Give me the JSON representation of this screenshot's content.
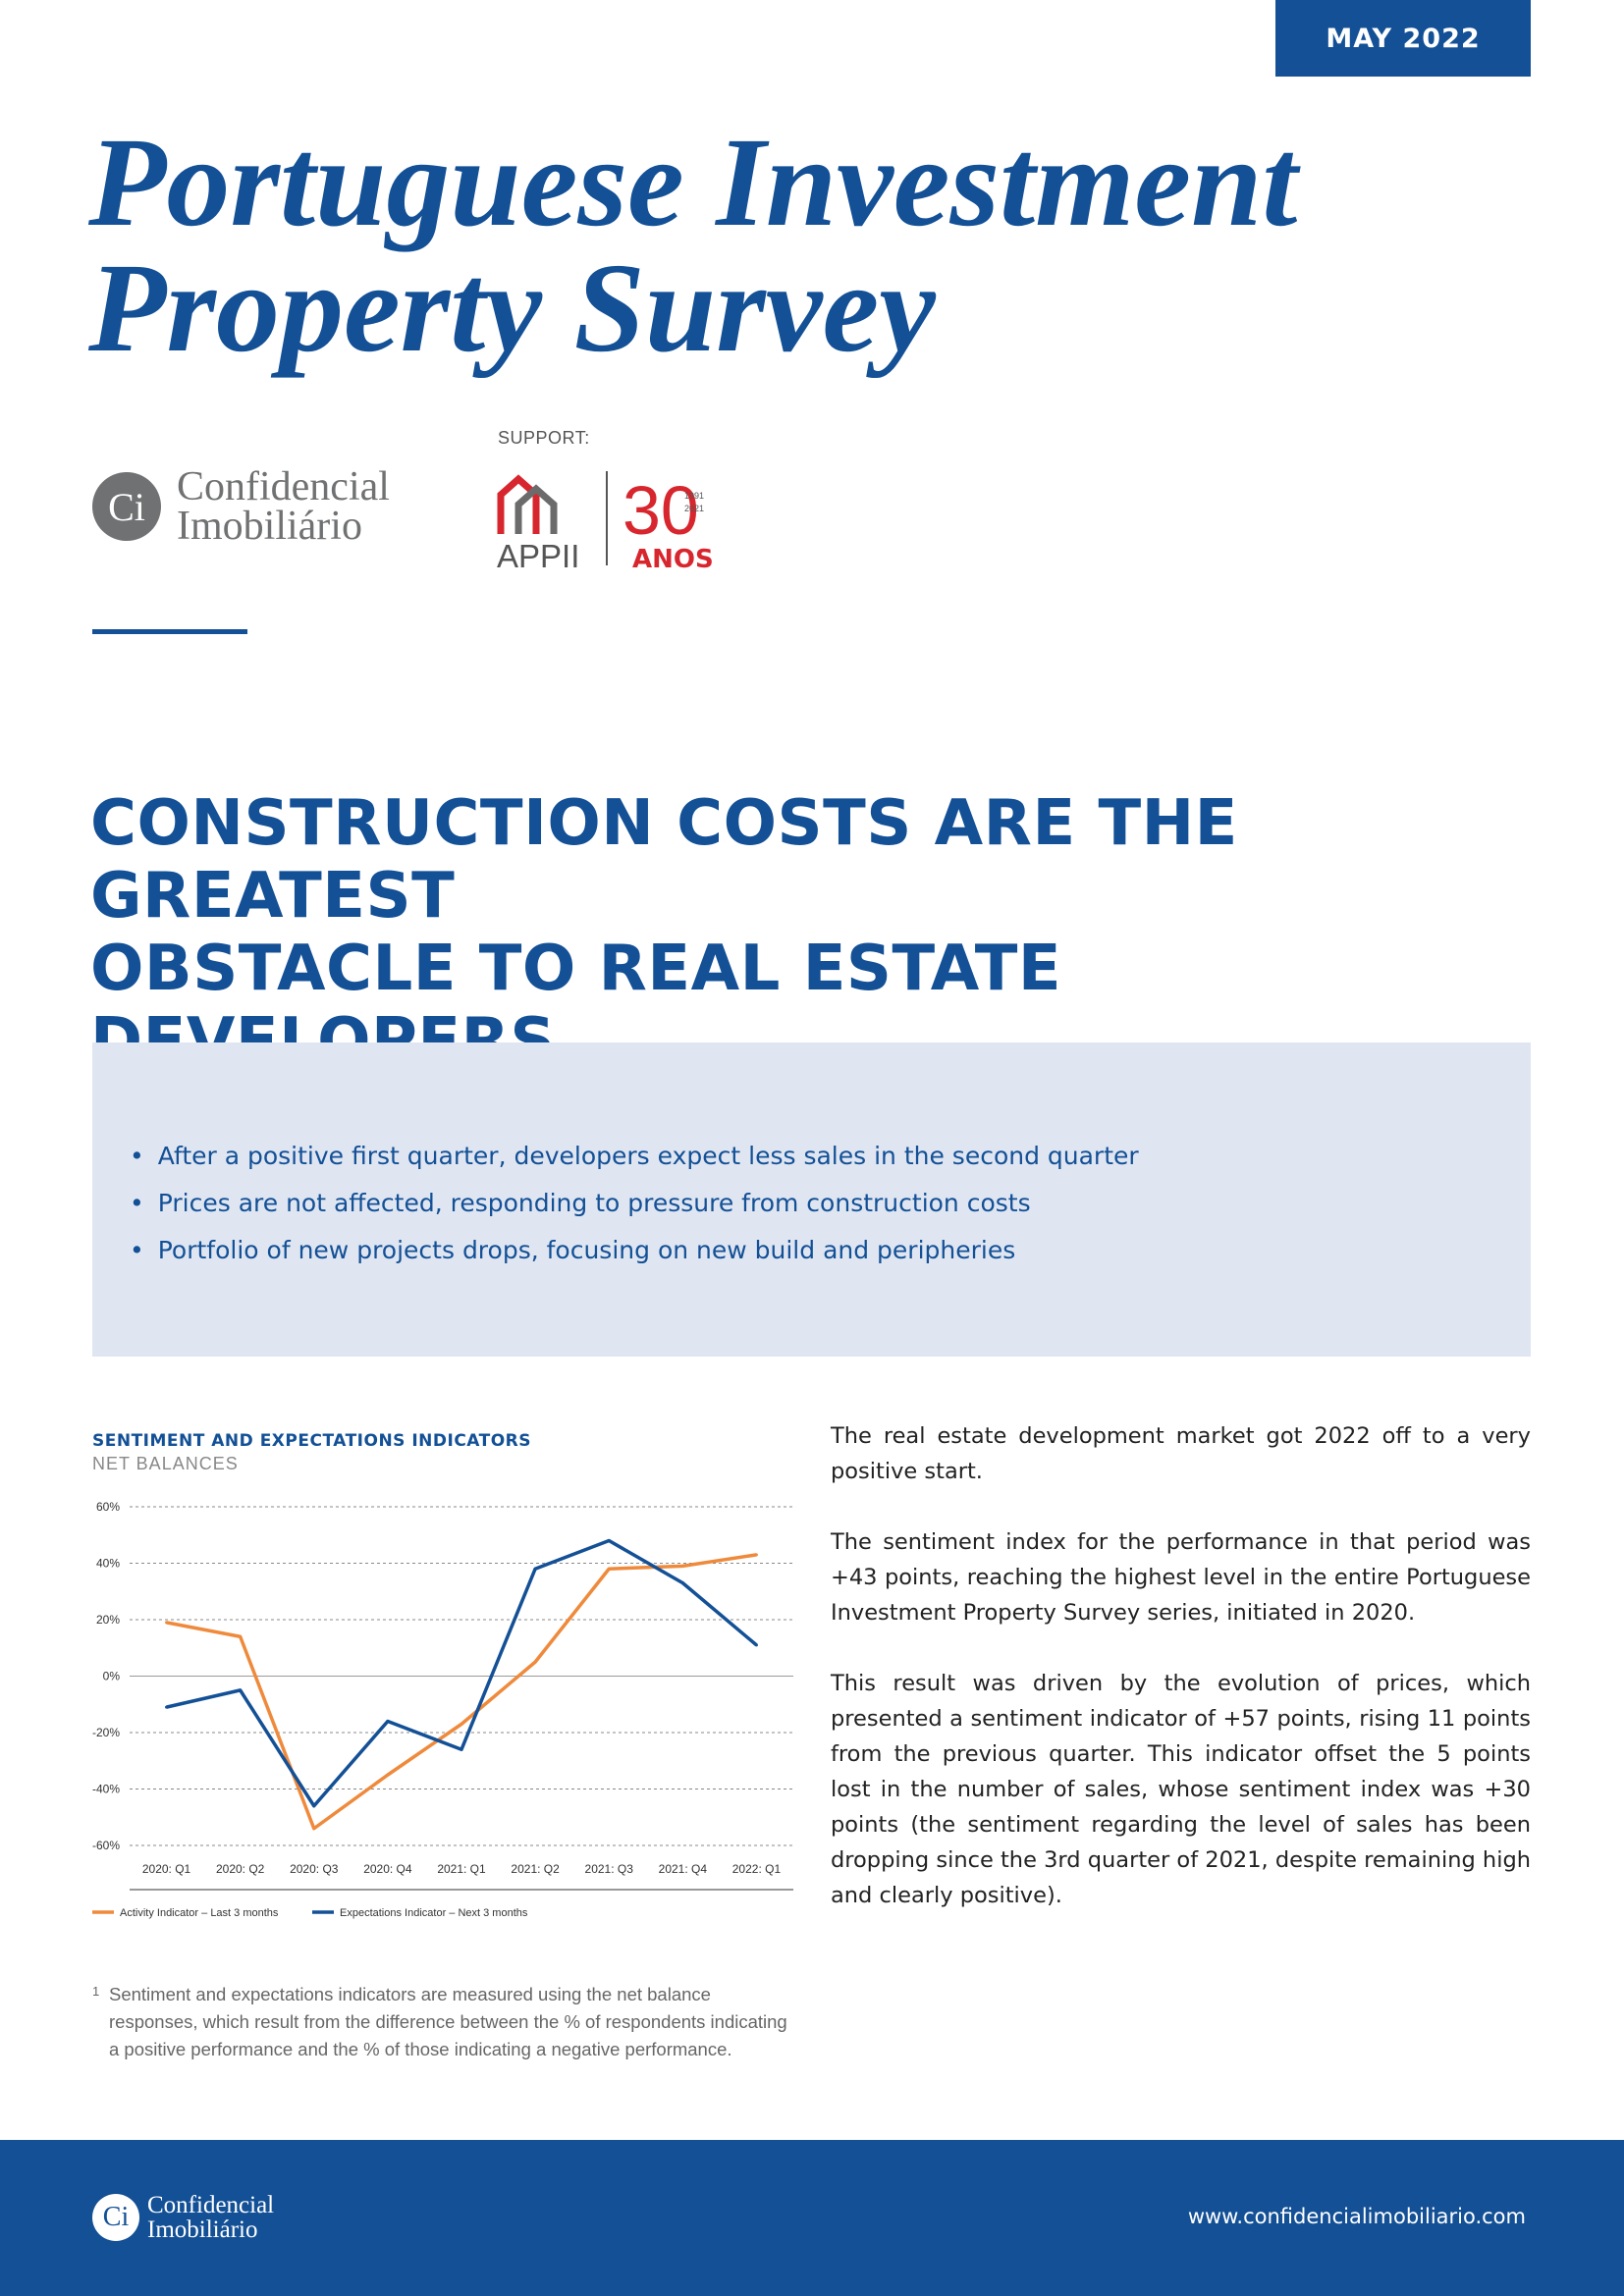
{
  "header": {
    "date": "MAY 2022",
    "title_line1": "Portuguese Investment",
    "title_line2": "Property Survey",
    "support_label": "SUPPORT:",
    "brand_line1": "Confidencial",
    "brand_line2": "Imobiliário",
    "brand_mark": "Ci",
    "partner": {
      "name": "APPII",
      "badge_number": "30",
      "badge_years": [
        "1991",
        "2021"
      ],
      "badge_word": "ANOS"
    }
  },
  "headline": {
    "line1": "CONSTRUCTION COSTS ARE THE GREATEST",
    "line2": "OBSTACLE TO REAL ESTATE DEVELOPERS"
  },
  "highlights": [
    "After a positive first quarter, developers expect less sales in the second quarter",
    "Prices are not affected, responding to pressure from construction costs",
    "Portfolio of new projects drops, focusing on new build and peripheries"
  ],
  "chart_data": {
    "type": "line",
    "title": "SENTIMENT AND EXPECTATIONS INDICATORS",
    "subtitle": "NET BALANCES",
    "categories": [
      "2020: Q1",
      "2020: Q2",
      "2020: Q3",
      "2020: Q4",
      "2021: Q1",
      "2021: Q2",
      "2021: Q3",
      "2021: Q4",
      "2022: Q1"
    ],
    "y_ticks": [
      "60%",
      "40%",
      "20%",
      "0%",
      "-20%",
      "-40%",
      "-60%"
    ],
    "ylim": [
      -60,
      60
    ],
    "grid": true,
    "legend_position": "bottom-left",
    "series": [
      {
        "name": "Activity Indicator – Last 3 months",
        "color": "#ef8a3c",
        "values": [
          19,
          14,
          -54,
          -35,
          -17,
          5,
          38,
          39,
          43
        ]
      },
      {
        "name": "Expectations Indicator – Next 3 months",
        "color": "#135096",
        "values": [
          -11,
          -5,
          -46,
          -16,
          -26,
          38,
          48,
          33,
          11
        ]
      }
    ]
  },
  "footnote": {
    "mark": "1",
    "text": "Sentiment and expectations indicators are measured using the net balance responses, which result from the difference between the % of respondents indicating a positive performance and the % of those indicating a negative performance."
  },
  "body": [
    "The real estate development market got 2022 off to a very positive start.",
    "The sentiment index for the performance in that period was +43 points, reaching the highest level in the entire Portuguese Investment Property Survey series, initiated in 2020.",
    "This result was driven by the evolution of prices, which presented a sentiment indicator of +57 points, rising 11 points from the previous quarter. This indicator offset the 5 points lost in the number of sales, whose sentiment index was +30 points (the sentiment regarding the level of sales has been dropping since the 3rd quarter of 2021, despite remaining high and clearly positive)."
  ],
  "footer": {
    "brand_mark": "Ci",
    "brand_line1": "Confidencial",
    "brand_line2": "Imobiliário",
    "url": "www.confidencialimobiliario.com"
  },
  "colors": {
    "primary": "#135096",
    "accent_orange": "#ef8a3c",
    "highlight_bg": "#e0e6f1",
    "partner_red": "#d7262d"
  }
}
